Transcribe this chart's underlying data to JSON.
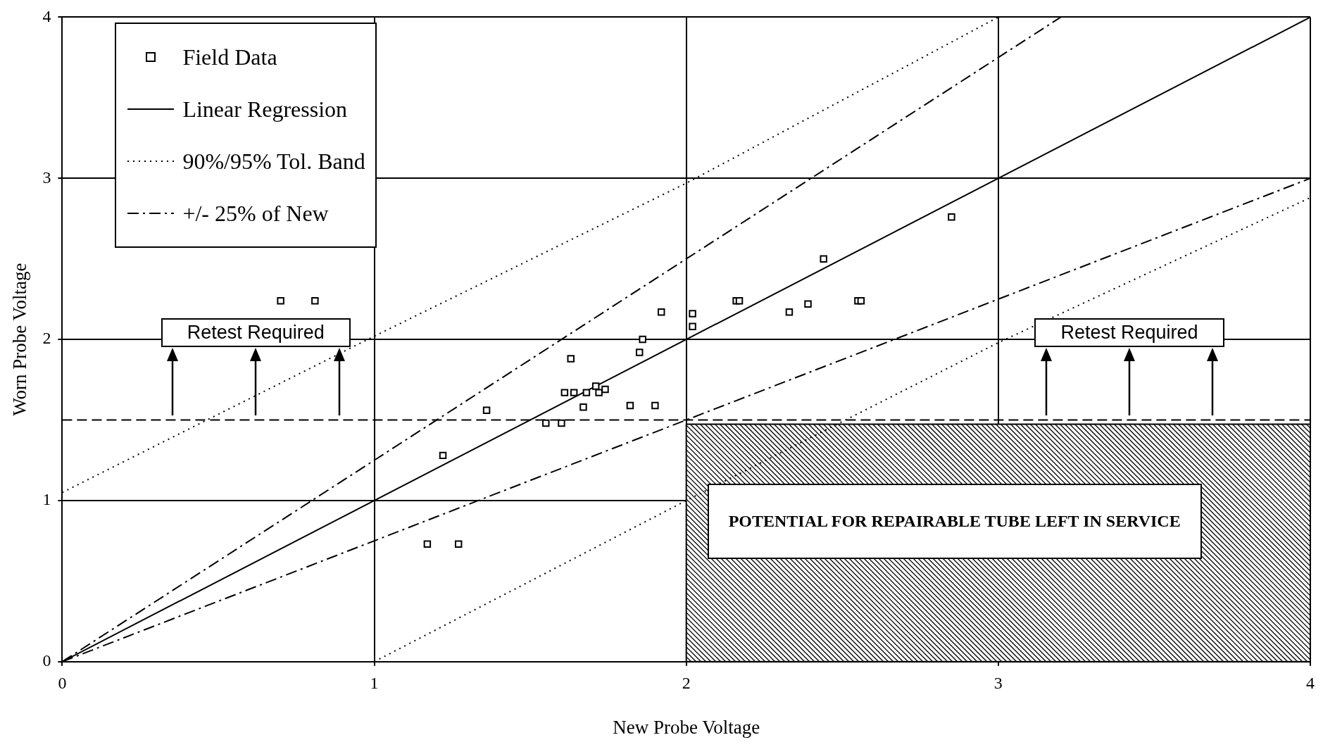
{
  "chart_data": {
    "type": "scatter",
    "xlabel": "New Probe Voltage",
    "ylabel": "Worn Probe Voltage",
    "xlim": [
      0,
      4
    ],
    "ylim": [
      0,
      4
    ],
    "xticks": [
      0,
      1,
      2,
      3,
      4
    ],
    "yticks": [
      0,
      1,
      2,
      3,
      4
    ],
    "grid": true,
    "legend": "top left",
    "series": [
      {
        "name": "Field Data",
        "color": "#000000",
        "marker": "square",
        "x": [
          0.7,
          0.81,
          1.17,
          1.27,
          1.22,
          1.36,
          1.55,
          1.6,
          1.63,
          1.61,
          1.64,
          1.67,
          1.68,
          1.71,
          1.72,
          1.74,
          1.82,
          1.9,
          1.85,
          1.86,
          1.92,
          2.02,
          2.02,
          2.16,
          2.17,
          2.33,
          2.39,
          2.44,
          2.55,
          2.56,
          2.85
        ],
        "values": [
          2.24,
          2.24,
          0.73,
          0.73,
          1.28,
          1.56,
          1.48,
          1.48,
          1.88,
          1.67,
          1.67,
          1.58,
          1.67,
          1.71,
          1.67,
          1.69,
          1.59,
          1.59,
          1.92,
          2.0,
          2.17,
          2.16,
          2.08,
          2.24,
          2.24,
          2.17,
          2.22,
          2.5,
          2.24,
          2.24,
          2.76
        ]
      },
      {
        "type": "line",
        "name": "Linear Regression",
        "color": "#000000",
        "line_style": "solid",
        "x": [
          0,
          4
        ],
        "values": [
          0,
          4
        ]
      },
      {
        "type": "line",
        "name": "90%/95% Tol. Band",
        "color": "#000000",
        "line_style": "dotted",
        "x": [
          0,
          1,
          2,
          3
        ],
        "values": [
          1.05,
          2.02,
          2.97,
          4.0
        ]
      },
      {
        "type": "line",
        "color": "#000000",
        "line_style": "dotted",
        "x": [
          1,
          2,
          3,
          4
        ],
        "values": [
          0,
          1.0,
          1.98,
          2.88
        ]
      },
      {
        "type": "line",
        "name": "+/- 25% of New",
        "color": "#000000",
        "line_style": "dashed",
        "x": [
          0,
          3.2
        ],
        "values": [
          0,
          4
        ]
      },
      {
        "type": "line",
        "color": "#000000",
        "line_style": "dashed",
        "x": [
          0,
          4
        ],
        "values": [
          0,
          3
        ]
      }
    ],
    "ref_lines": [
      {
        "axis": "y",
        "value": 1.5,
        "line_style": "dashed"
      }
    ],
    "bands": [
      {
        "axis": "x",
        "from": 2,
        "to": 4,
        "color": "#ffffff",
        "label": "POTENTIAL FOR REPAIRABLE TUBE LEFT IN SERVICE"
      }
    ],
    "annotations": [
      "Retest Required",
      "Retest Required"
    ]
  }
}
